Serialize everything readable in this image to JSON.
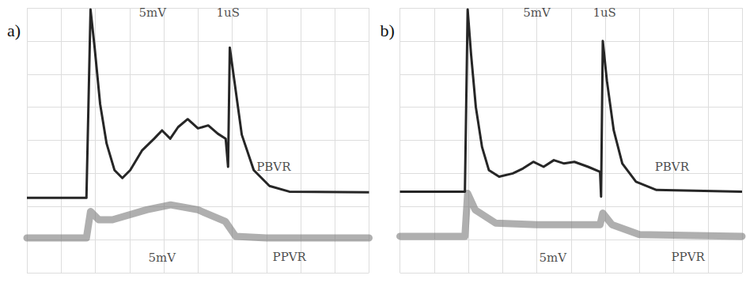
{
  "chart_data": [
    {
      "type": "line",
      "title": "a)",
      "grid": true,
      "tick_labels": false,
      "xlim": [
        0,
        10
      ],
      "xticks": [
        0,
        1,
        2,
        3,
        4,
        5,
        6,
        7,
        8,
        9,
        10
      ],
      "ylim": [
        0,
        8
      ],
      "yticks": [
        0,
        1,
        2,
        3,
        4,
        5,
        6,
        7,
        8
      ],
      "series": [
        {
          "color": "#262626",
          "line_style": "solid",
          "x": [
            0,
            1.74,
            1.86,
            1.98,
            2.14,
            2.33,
            2.56,
            2.79,
            3.02,
            3.37,
            3.72,
            3.95,
            4.19,
            4.42,
            4.7,
            5.0,
            5.3,
            5.58,
            5.81,
            5.88,
            5.93,
            6.09,
            6.28,
            6.63,
            7.09,
            7.67,
            10
          ],
          "values": [
            2.26,
            2.26,
            7.95,
            6.8,
            5.1,
            3.9,
            3.1,
            2.86,
            3.1,
            3.7,
            4.05,
            4.3,
            4.05,
            4.4,
            4.64,
            4.36,
            4.45,
            4.2,
            4.05,
            3.2,
            6.8,
            5.6,
            4.17,
            3.1,
            2.62,
            2.45,
            2.43
          ]
        },
        {
          "color": "#7a7a7a",
          "line_style": "band",
          "x": [
            0,
            1.74,
            1.86,
            2.1,
            2.5,
            3.5,
            4.2,
            5.0,
            5.8,
            6.1,
            7.0,
            10
          ],
          "values": [
            1.05,
            1.05,
            1.85,
            1.6,
            1.6,
            1.9,
            2.05,
            1.9,
            1.55,
            1.1,
            1.05,
            1.05
          ]
        }
      ],
      "annotations": [
        {
          "text": "5mV",
          "x": 3.67,
          "y": 7.86
        },
        {
          "text": "1uS",
          "x": 5.88,
          "y": 7.86
        },
        {
          "text": "PBVR",
          "x": 7.21,
          "y": 3.2
        },
        {
          "text": "PPVR",
          "x": 7.67,
          "y": 0.48
        },
        {
          "text": "5mV",
          "x": 3.95,
          "y": 0.45
        }
      ]
    },
    {
      "type": "line",
      "title": "b)",
      "grid": true,
      "tick_labels": false,
      "xlim": [
        0,
        10
      ],
      "xticks": [
        0,
        1,
        2,
        3,
        4,
        5,
        6,
        7,
        8,
        9,
        10
      ],
      "ylim": [
        0,
        8
      ],
      "yticks": [
        0,
        1,
        2,
        3,
        4,
        5,
        6,
        7,
        8
      ],
      "series": [
        {
          "color": "#262626",
          "line_style": "solid",
          "x": [
            0,
            1.9,
            1.98,
            2.08,
            2.22,
            2.4,
            2.6,
            2.9,
            3.3,
            3.6,
            3.9,
            4.2,
            4.5,
            4.8,
            5.1,
            5.5,
            5.85,
            5.88,
            5.93,
            6.05,
            6.25,
            6.5,
            6.9,
            7.5,
            10
          ],
          "values": [
            2.45,
            2.45,
            7.95,
            6.6,
            5.0,
            3.8,
            3.1,
            2.9,
            3.0,
            3.15,
            3.35,
            3.2,
            3.4,
            3.3,
            3.35,
            3.2,
            3.05,
            2.3,
            7.0,
            5.8,
            4.3,
            3.3,
            2.75,
            2.5,
            2.45
          ]
        },
        {
          "color": "#7a7a7a",
          "line_style": "band",
          "x": [
            0,
            1.9,
            1.98,
            2.2,
            2.8,
            4.0,
            5.0,
            5.85,
            5.93,
            6.2,
            7.0,
            10
          ],
          "values": [
            1.1,
            1.1,
            2.4,
            1.9,
            1.5,
            1.45,
            1.45,
            1.45,
            1.8,
            1.45,
            1.15,
            1.1
          ]
        }
      ],
      "annotations": [
        {
          "text": "5mV",
          "x": 4.0,
          "y": 7.86
        },
        {
          "text": "1uS",
          "x": 5.98,
          "y": 7.86
        },
        {
          "text": "PBVR",
          "x": 7.95,
          "y": 3.2
        },
        {
          "text": "PPVR",
          "x": 8.42,
          "y": 0.48
        },
        {
          "text": "5mV",
          "x": 4.47,
          "y": 0.45
        }
      ]
    }
  ]
}
